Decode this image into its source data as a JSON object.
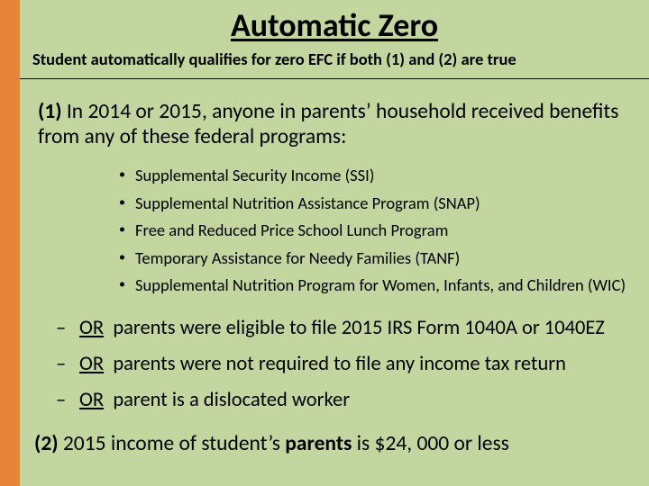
{
  "colors": {
    "background": "#c4d6a0",
    "accent_bar": "#e8833a",
    "text": "#000000",
    "divider": "#000000"
  },
  "typography": {
    "title_fontsize": 36,
    "subtitle_fontsize": 18.5,
    "section_fontsize": 23.5,
    "bullet_fontsize": 18.5,
    "or_fontsize": 22.5,
    "font_family": "Calibri"
  },
  "title": "Automatic Zero",
  "subtitle": "Student automatically qualifies for zero EFC if both (1) and (2) are true",
  "section1": {
    "lead": "(1)",
    "text": " In 2014 or 2015, anyone in parents’ household received benefits from any of these federal programs:"
  },
  "bullets": [
    "Supplemental Security Income (SSI)",
    "Supplemental Nutrition Assistance Program (SNAP)",
    "Free and Reduced Price School Lunch Program",
    "Temporary Assistance for Needy Families (TANF)",
    "Supplemental Nutrition Program for Women, Infants, and Children (WIC)"
  ],
  "ors": {
    "dash": "–",
    "or_label": "OR",
    "items": [
      "parents were eligible to file 2015 IRS Form 1040A or 1040EZ",
      "parents were not required to file any income tax return",
      "parent is a dislocated worker"
    ]
  },
  "section2": {
    "lead": "(2)",
    "mid1": " 2015 income of student’s ",
    "bold": "parents",
    "mid2": " is $24, 000 or less"
  }
}
